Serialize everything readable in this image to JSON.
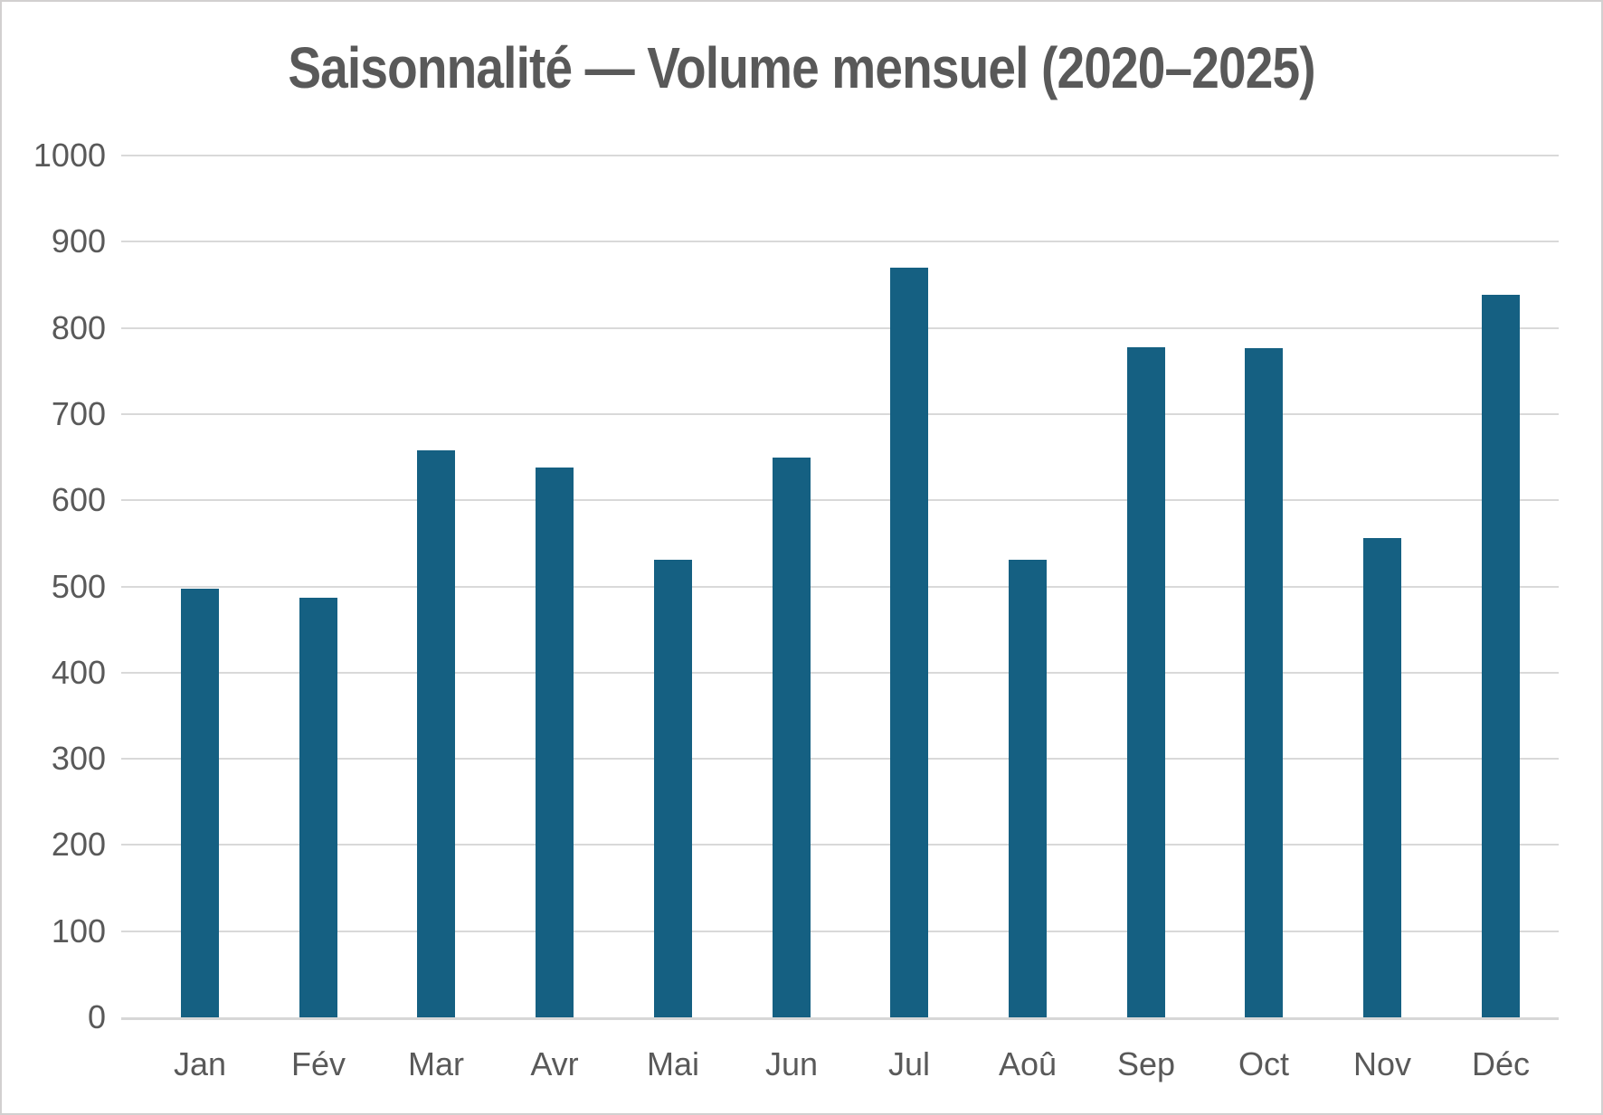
{
  "chart_data": {
    "type": "bar",
    "title": "Saisonnalité — Volume mensuel (2020–2025)",
    "categories": [
      "Jan",
      "Fév",
      "Mar",
      "Avr",
      "Mai",
      "Jun",
      "Jul",
      "Aoû",
      "Sep",
      "Oct",
      "Nov",
      "Déc"
    ],
    "values": [
      497,
      487,
      658,
      638,
      531,
      650,
      870,
      531,
      778,
      776,
      556,
      838
    ],
    "xlabel": "",
    "ylabel": "",
    "ylim": [
      0,
      1000
    ],
    "yticks": [
      0,
      100,
      200,
      300,
      400,
      500,
      600,
      700,
      800,
      900,
      1000
    ],
    "grid": true,
    "legend_position": "none",
    "colors": {
      "bar": "#156082",
      "text": "#595959",
      "gridline": "#d9d9d9",
      "axis_line": "#d7d7d7",
      "background": "#ffffff",
      "frame_border": "#d2d0d0"
    }
  }
}
